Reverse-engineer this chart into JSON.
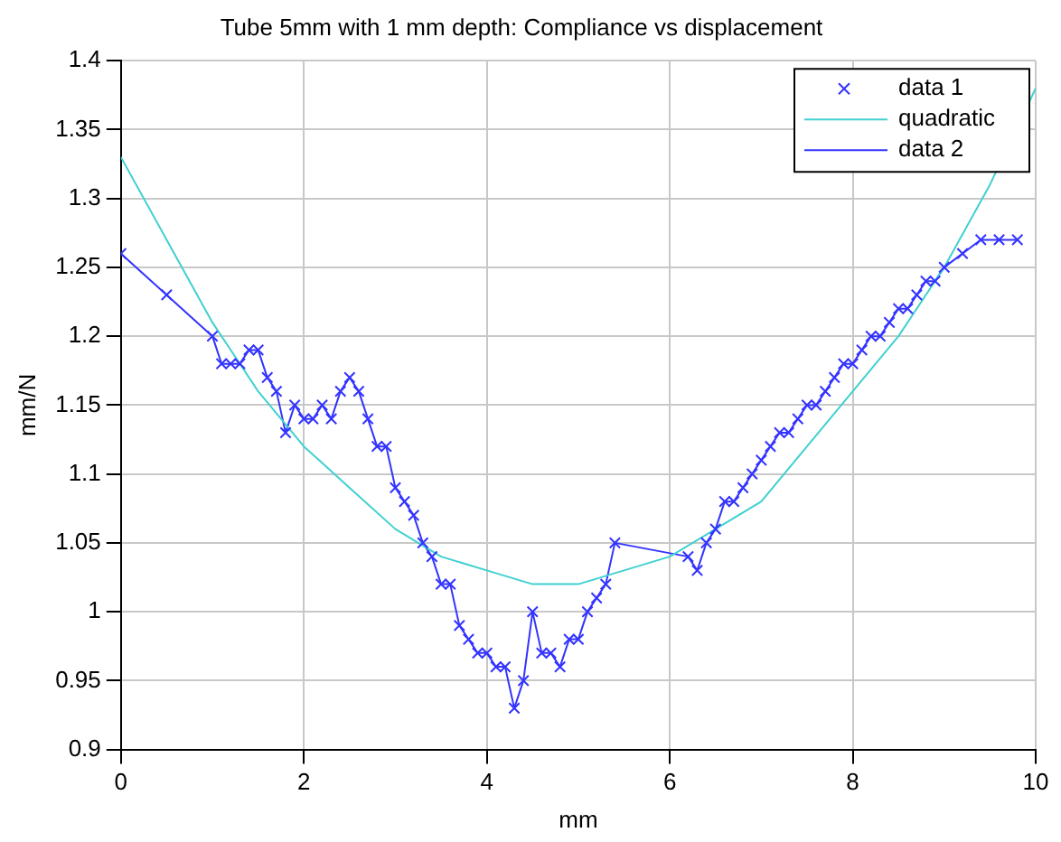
{
  "chart_data": {
    "type": "line",
    "title": "Tube 5mm with 1 mm depth: Compliance vs displacement",
    "xlabel": "mm",
    "ylabel": "mm/N",
    "xlim": [
      0,
      10
    ],
    "xticks": [
      0,
      2,
      4,
      6,
      8,
      10
    ],
    "ylim": [
      0.9,
      1.4
    ],
    "yticks": [
      0.9,
      0.95,
      1,
      1.05,
      1.1,
      1.15,
      1.2,
      1.25,
      1.3,
      1.35,
      1.4
    ],
    "grid": true,
    "legend": "top right",
    "series": [
      {
        "name": "data 1",
        "type": "scatter",
        "marker": "cross",
        "color": "#3333ff",
        "x": [
          0,
          0.5,
          1,
          1.1,
          1.2,
          1.3,
          1.4,
          1.5,
          1.6,
          1.7,
          1.8,
          1.9,
          2,
          2.1,
          2.2,
          2.3,
          2.4,
          2.5,
          2.6,
          2.7,
          2.8,
          2.9,
          3,
          3.1,
          3.2,
          3.3,
          3.4,
          3.5,
          3.6,
          3.7,
          3.8,
          3.9,
          4,
          4.1,
          4.2,
          4.3,
          4.4,
          4.5,
          4.6,
          4.7,
          4.8,
          4.9,
          5,
          5.1,
          5.2,
          5.3,
          5.4,
          6.2,
          6.3,
          6.4,
          6.5,
          6.6,
          6.7,
          6.8,
          6.9,
          7,
          7.1,
          7.2,
          7.3,
          7.4,
          7.5,
          7.6,
          7.7,
          7.8,
          7.9,
          8,
          8.1,
          8.2,
          8.3,
          8.4,
          8.5,
          8.6,
          8.7,
          8.8,
          8.9,
          9,
          9.2,
          9.4,
          9.6,
          9.8
        ],
        "values": [
          1.26,
          1.23,
          1.2,
          1.18,
          1.18,
          1.18,
          1.19,
          1.19,
          1.17,
          1.16,
          1.13,
          1.15,
          1.14,
          1.14,
          1.15,
          1.14,
          1.16,
          1.17,
          1.16,
          1.14,
          1.12,
          1.12,
          1.09,
          1.08,
          1.07,
          1.05,
          1.04,
          1.02,
          1.02,
          0.99,
          0.98,
          0.97,
          0.97,
          0.96,
          0.96,
          0.93,
          0.95,
          1,
          0.97,
          0.97,
          0.96,
          0.98,
          0.98,
          1,
          1.01,
          1.02,
          1.05,
          1.04,
          1.03,
          1.05,
          1.06,
          1.08,
          1.08,
          1.09,
          1.1,
          1.11,
          1.12,
          1.13,
          1.13,
          1.14,
          1.15,
          1.15,
          1.16,
          1.17,
          1.18,
          1.18,
          1.19,
          1.2,
          1.2,
          1.21,
          1.22,
          1.22,
          1.23,
          1.24,
          1.24,
          1.25,
          1.26,
          1.27,
          1.27,
          1.27
        ]
      },
      {
        "name": "quadratic",
        "marker": "none",
        "color": "#40d0d0",
        "x": [
          0,
          0.5,
          1,
          1.5,
          2,
          2.5,
          3,
          3.5,
          4,
          4.5,
          5,
          5.5,
          6,
          6.5,
          7,
          7.5,
          8,
          8.5,
          9,
          9.5,
          10
        ],
        "values": [
          1.33,
          1.27,
          1.21,
          1.16,
          1.12,
          1.09,
          1.06,
          1.04,
          1.03,
          1.02,
          1.02,
          1.03,
          1.04,
          1.06,
          1.08,
          1.12,
          1.16,
          1.2,
          1.25,
          1.31,
          1.38
        ]
      },
      {
        "name": "data 2",
        "marker": "none",
        "color": "#3333ff",
        "x": [
          0,
          0.5,
          1,
          1.1,
          1.2,
          1.3,
          1.4,
          1.5,
          1.6,
          1.7,
          1.8,
          1.9,
          2,
          2.1,
          2.2,
          2.3,
          2.4,
          2.5,
          2.6,
          2.7,
          2.8,
          2.9,
          3,
          3.1,
          3.2,
          3.3,
          3.4,
          3.5,
          3.6,
          3.7,
          3.8,
          3.9,
          4,
          4.1,
          4.2,
          4.3,
          4.4,
          4.5,
          4.6,
          4.7,
          4.8,
          4.9,
          5,
          5.1,
          5.2,
          5.3,
          5.4,
          6.2,
          6.3,
          6.4,
          6.5,
          6.6,
          6.7,
          6.8,
          6.9,
          7,
          7.1,
          7.2,
          7.3,
          7.4,
          7.5,
          7.6,
          7.7,
          7.8,
          7.9,
          8,
          8.1,
          8.2,
          8.3,
          8.4,
          8.5,
          8.6,
          8.7,
          8.8,
          8.9,
          9,
          9.2,
          9.4,
          9.6,
          9.8
        ],
        "values": [
          1.26,
          1.23,
          1.2,
          1.18,
          1.18,
          1.18,
          1.19,
          1.19,
          1.17,
          1.16,
          1.13,
          1.15,
          1.14,
          1.14,
          1.15,
          1.14,
          1.16,
          1.17,
          1.16,
          1.14,
          1.12,
          1.12,
          1.09,
          1.08,
          1.07,
          1.05,
          1.04,
          1.02,
          1.02,
          0.99,
          0.98,
          0.97,
          0.97,
          0.96,
          0.96,
          0.93,
          0.95,
          1,
          0.97,
          0.97,
          0.96,
          0.98,
          0.98,
          1,
          1.01,
          1.02,
          1.05,
          1.04,
          1.03,
          1.05,
          1.06,
          1.08,
          1.08,
          1.09,
          1.1,
          1.11,
          1.12,
          1.13,
          1.13,
          1.14,
          1.15,
          1.15,
          1.16,
          1.17,
          1.18,
          1.18,
          1.19,
          1.2,
          1.2,
          1.21,
          1.22,
          1.22,
          1.23,
          1.24,
          1.24,
          1.25,
          1.26,
          1.27,
          1.27,
          1.27
        ]
      }
    ]
  }
}
